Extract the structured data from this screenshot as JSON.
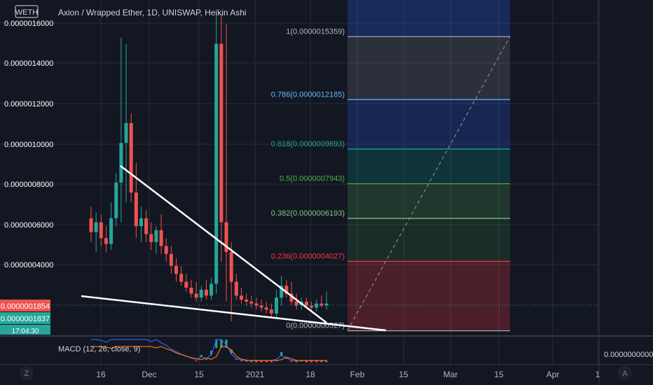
{
  "header": {
    "symbol_badge": "WETH",
    "title": "Axion / Wrapped Ether, 1D, UNISWAP, Heikin Ashi"
  },
  "price_axis": {
    "ticks": [
      "0.0000016000",
      "0.0000014000",
      "0.0000012000",
      "0.0000010000",
      "0.0000008000",
      "0.0000006000",
      "0.0000004000"
    ],
    "last_price_label": "0.0000001854",
    "second_price_label": "0.0000001837",
    "countdown_label": "17:04:30"
  },
  "time_axis": {
    "ticks": [
      "16",
      "Dec",
      "15",
      "2021",
      "18",
      "Feb",
      "15",
      "Mar",
      "15",
      "Apr",
      "1"
    ],
    "left_button": "Z",
    "right_button": "A"
  },
  "macd": {
    "label": "MACD (12, 26, close, 9)",
    "value_label": "0.0000000000"
  },
  "fib": {
    "levels": [
      {
        "ratio": 1,
        "label": "1(0.0000015359)",
        "color": "#b2b5be",
        "price": 1.5359e-06
      },
      {
        "ratio": 0.786,
        "label": "0.786(0.0000012185)",
        "color": "#64b5f6",
        "price": 1.2185e-06
      },
      {
        "ratio": 0.618,
        "label": "0.618(0.0000009693)",
        "color": "#26a69a",
        "price": 9.693e-07
      },
      {
        "ratio": 0.5,
        "label": "0.5(0.0000007943)",
        "color": "#4caf50",
        "price": 7.943e-07
      },
      {
        "ratio": 0.382,
        "label": "0.382(0.0000006193)",
        "color": "#81c784",
        "price": 6.193e-07
      },
      {
        "ratio": 0.236,
        "label": "0.236(0.0000004027)",
        "color": "#f23645",
        "price": 4.027e-07
      },
      {
        "ratio": 0,
        "label": "0(0.0000000527)",
        "color": "#b2b5be",
        "price": 5.27e-08
      }
    ],
    "bands": [
      {
        "color": "#2962ff",
        "opacity": 0.25
      },
      {
        "color": "#787b86",
        "opacity": 0.25
      },
      {
        "color": "#2962ff",
        "opacity": 0.22
      },
      {
        "color": "#00897b",
        "opacity": 0.25
      },
      {
        "color": "#4caf50",
        "opacity": 0.22
      },
      {
        "color": "#4caf50",
        "opacity": 0.15
      },
      {
        "color": "#f23645",
        "opacity": 0.25
      }
    ]
  },
  "colors": {
    "up": "#26a69a",
    "down": "#ef5350",
    "grid": "#2a2e39",
    "trendline": "#ffffff"
  },
  "chart_data": {
    "type": "candlestick",
    "title": "Axion / Wrapped Ether, 1D, UNISWAP, Heikin Ashi",
    "ylim": [
      0.0,
      1.65e-06
    ],
    "last_price": 1.854e-07,
    "candles": [
      {
        "o": 6.2e-07,
        "h": 6.8e-07,
        "l": 5e-07,
        "c": 5.5e-07
      },
      {
        "o": 5.5e-07,
        "h": 6.5e-07,
        "l": 4.5e-07,
        "c": 6e-07
      },
      {
        "o": 6e-07,
        "h": 6.4e-07,
        "l": 4.8e-07,
        "c": 5.2e-07
      },
      {
        "o": 5.2e-07,
        "h": 5.8e-07,
        "l": 4.5e-07,
        "c": 4.9e-07
      },
      {
        "o": 4.9e-07,
        "h": 7e-07,
        "l": 4.6e-07,
        "c": 6.2e-07
      },
      {
        "o": 6.2e-07,
        "h": 8.5e-07,
        "l": 5.8e-07,
        "c": 8e-07
      },
      {
        "o": 8e-07,
        "h": 1.53e-06,
        "l": 6e-07,
        "c": 1e-06
      },
      {
        "o": 1e-06,
        "h": 1.5e-06,
        "l": 7e-07,
        "c": 1.1e-06
      },
      {
        "o": 1.1e-06,
        "h": 1.15e-06,
        "l": 7e-07,
        "c": 7.5e-07
      },
      {
        "o": 7.5e-07,
        "h": 9e-07,
        "l": 5.2e-07,
        "c": 5.8e-07
      },
      {
        "o": 5.8e-07,
        "h": 6.8e-07,
        "l": 5e-07,
        "c": 6.2e-07
      },
      {
        "o": 6.2e-07,
        "h": 6.6e-07,
        "l": 5e-07,
        "c": 5.4e-07
      },
      {
        "o": 5.4e-07,
        "h": 6e-07,
        "l": 4.6e-07,
        "c": 5e-07
      },
      {
        "o": 5e-07,
        "h": 5.8e-07,
        "l": 4.4e-07,
        "c": 5.6e-07
      },
      {
        "o": 5.6e-07,
        "h": 6.4e-07,
        "l": 4.4e-07,
        "c": 4.8e-07
      },
      {
        "o": 4.8e-07,
        "h": 5.2e-07,
        "l": 4e-07,
        "c": 4.4e-07
      },
      {
        "o": 4.4e-07,
        "h": 4.8e-07,
        "l": 3.4e-07,
        "c": 3.8e-07
      },
      {
        "o": 3.8e-07,
        "h": 4.2e-07,
        "l": 3e-07,
        "c": 3.4e-07
      },
      {
        "o": 3.4e-07,
        "h": 3.8e-07,
        "l": 2.8e-07,
        "c": 3e-07
      },
      {
        "o": 3e-07,
        "h": 3.4e-07,
        "l": 2.5e-07,
        "c": 2.7e-07
      },
      {
        "o": 2.7e-07,
        "h": 3.1e-07,
        "l": 2.2e-07,
        "c": 2.4e-07
      },
      {
        "o": 2.4e-07,
        "h": 3e-07,
        "l": 2e-07,
        "c": 2.2e-07
      },
      {
        "o": 2.2e-07,
        "h": 2.8e-07,
        "l": 2e-07,
        "c": 2.6e-07
      },
      {
        "o": 2.6e-07,
        "h": 3.1e-07,
        "l": 2.1e-07,
        "c": 2.3e-07
      },
      {
        "o": 2.3e-07,
        "h": 3.2e-07,
        "l": 2.1e-07,
        "c": 2.9e-07
      },
      {
        "o": 2.9e-07,
        "h": 1.65e-06,
        "l": 2.4e-07,
        "c": 1.5e-06
      },
      {
        "o": 1.5e-06,
        "h": 1.65e-06,
        "l": 4e-07,
        "c": 6e-07
      },
      {
        "o": 6e-07,
        "h": 1.6e-06,
        "l": 2e-07,
        "c": 4.5e-07
      },
      {
        "o": 4.5e-07,
        "h": 5e-07,
        "l": 1e-07,
        "c": 3e-07
      },
      {
        "o": 3e-07,
        "h": 3.4e-07,
        "l": 2.1e-07,
        "c": 2.3e-07
      },
      {
        "o": 2.3e-07,
        "h": 2.7e-07,
        "l": 1.9e-07,
        "c": 2.1e-07
      },
      {
        "o": 2.1e-07,
        "h": 2.4e-07,
        "l": 1.8e-07,
        "c": 2e-07
      },
      {
        "o": 2e-07,
        "h": 2.3e-07,
        "l": 1.7e-07,
        "c": 1.9e-07
      },
      {
        "o": 1.9e-07,
        "h": 2.2e-07,
        "l": 1.6e-07,
        "c": 1.8e-07
      },
      {
        "o": 1.8e-07,
        "h": 2.1e-07,
        "l": 1.5e-07,
        "c": 1.7e-07
      },
      {
        "o": 1.7e-07,
        "h": 2e-07,
        "l": 1.4e-07,
        "c": 1.6e-07
      },
      {
        "o": 1.6e-07,
        "h": 1.9e-07,
        "l": 1.2e-07,
        "c": 1.4e-07
      },
      {
        "o": 1.4e-07,
        "h": 2.6e-07,
        "l": 1.2e-07,
        "c": 2.2e-07
      },
      {
        "o": 2.2e-07,
        "h": 3.3e-07,
        "l": 1.8e-07,
        "c": 2.8e-07
      },
      {
        "o": 2.8e-07,
        "h": 3.1e-07,
        "l": 2.2e-07,
        "c": 2.4e-07
      },
      {
        "o": 2.4e-07,
        "h": 3e-07,
        "l": 1.8e-07,
        "c": 2e-07
      },
      {
        "o": 2e-07,
        "h": 2.4e-07,
        "l": 1.6e-07,
        "c": 1.8e-07
      },
      {
        "o": 1.8e-07,
        "h": 2.2e-07,
        "l": 1.6e-07,
        "c": 2e-07
      },
      {
        "o": 2e-07,
        "h": 2.2e-07,
        "l": 1.7e-07,
        "c": 1.8e-07
      },
      {
        "o": 1.8e-07,
        "h": 2e-07,
        "l": 1.5e-07,
        "c": 1.7e-07
      },
      {
        "o": 1.7e-07,
        "h": 2.1e-07,
        "l": 1.5e-07,
        "c": 1.9e-07
      },
      {
        "o": 1.9e-07,
        "h": 2.3e-07,
        "l": 1.7e-07,
        "c": 1.8e-07
      },
      {
        "o": 1.8e-07,
        "h": 2.5e-07,
        "l": 1.6e-07,
        "c": 1.9e-07
      }
    ]
  }
}
